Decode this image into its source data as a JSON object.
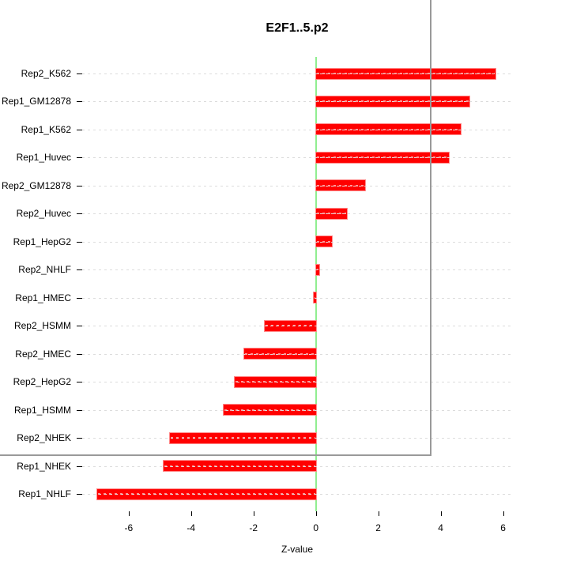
{
  "title": "E2F1..5.p2",
  "chart_data": {
    "type": "bar",
    "orientation": "horizontal",
    "title": "E2F1..5.p2",
    "xlabel": "Z-value",
    "ylabel": "",
    "categories_top_to_bottom": [
      "Rep2_K562",
      "Rep1_GM12878",
      "Rep1_K562",
      "Rep1_Huvec",
      "Rep2_GM12878",
      "Rep2_Huvec",
      "Rep1_HepG2",
      "Rep2_NHLF",
      "Rep1_HMEC",
      "Rep2_HSMM",
      "Rep2_HMEC",
      "Rep2_HepG2",
      "Rep1_HSMM",
      "Rep2_NHEK",
      "Rep1_NHEK",
      "Rep1_NHLF"
    ],
    "values": [
      5.75,
      4.93,
      4.65,
      4.27,
      1.57,
      1.0,
      0.52,
      0.1,
      -0.08,
      -1.65,
      -2.29,
      -2.6,
      -2.95,
      -4.68,
      -4.88,
      -7.0
    ],
    "xlim": [
      -7.49,
      6.29
    ],
    "xticks": [
      -6,
      -4,
      -2,
      0,
      2,
      4,
      6
    ],
    "grid": "dotted horizontal line per category, drawn over bars",
    "zero_reference_line": 0,
    "legend": "none"
  },
  "colors": {
    "bar": "#ff0000",
    "bar_edge": "#ff8a8a",
    "bar_center_dash": "rgba(255,255,255,0.6)",
    "zero_line": "#90ee90",
    "grid": "#dcdcdc",
    "box": "#999999",
    "axis_text": "#000000",
    "background": "#ffffff"
  }
}
